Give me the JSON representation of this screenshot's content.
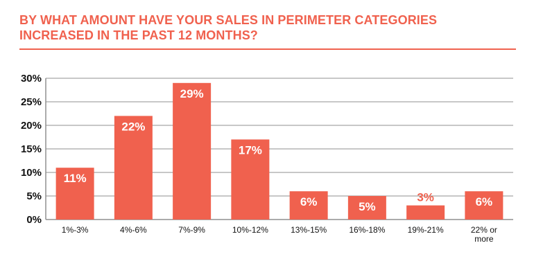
{
  "title": "BY WHAT AMOUNT HAVE YOUR SALES IN PERIMETER CATEGORIES INCREASED IN THE PAST 12 MONTHS?",
  "colors": {
    "accent": "#f0614e",
    "grid": "#8f8f8f",
    "text": "#111111"
  },
  "chart_data": {
    "type": "bar",
    "title": "BY WHAT AMOUNT HAVE YOUR SALES IN PERIMETER CATEGORIES INCREASED IN THE PAST 12 MONTHS?",
    "categories": [
      "1%-3%",
      "4%-6%",
      "7%-9%",
      "10%-12%",
      "13%-15%",
      "16%-18%",
      "19%-21%",
      "22% or more"
    ],
    "values": [
      11,
      22,
      29,
      17,
      6,
      5,
      3,
      6
    ],
    "data_labels": [
      "11%",
      "22%",
      "29%",
      "17%",
      "6%",
      "5%",
      "3%",
      "6%"
    ],
    "ylim": [
      0,
      30
    ],
    "yticks": [
      0,
      5,
      10,
      15,
      20,
      25,
      30
    ],
    "ytick_labels": [
      "0%",
      "5%",
      "10%",
      "15%",
      "20%",
      "25%",
      "30%"
    ],
    "grid": true,
    "legend": "none"
  }
}
